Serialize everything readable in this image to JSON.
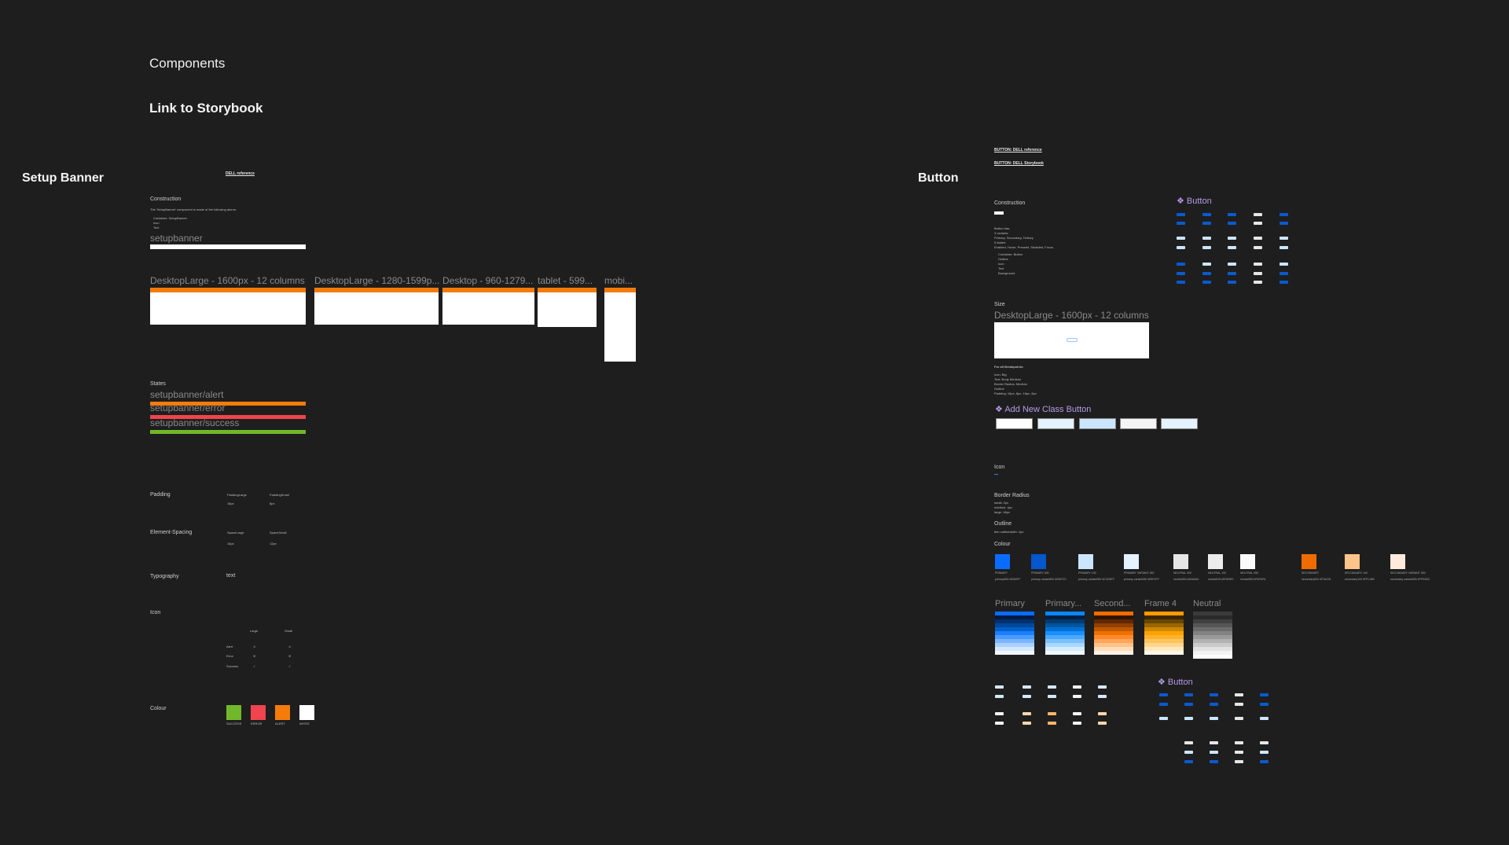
{
  "page": {
    "title": "Components",
    "storybook_link": "Link to Storybook"
  },
  "setup_banner": {
    "title": "Setup Banner",
    "reference": "DELL reference",
    "construction": "Construction",
    "construction_text": "The 'SetupBanner' component is made of the following atoms:",
    "atoms": [
      "Container: SetupBanner",
      "Icon",
      "Text"
    ],
    "instance_label": "setupbanner",
    "breakpoints": [
      "DesktopLarge - 1600px - 12 columns",
      "DesktopLarge - 1280-1599p...",
      "Desktop - 960-1279...",
      "tablet - 599...",
      "mobi..."
    ],
    "states_label": "States",
    "states": [
      {
        "name": "setupbanner/alert",
        "color": "#f57c0a"
      },
      {
        "name": "setupbanner/error",
        "color": "#f0444e"
      },
      {
        "name": "setupbanner/success",
        "color": "#72b72a"
      }
    ],
    "padding": {
      "label": "Padding",
      "items": [
        {
          "name": "PaddingLarge",
          "value": "16px"
        },
        {
          "name": "PaddingSmall",
          "value": "8px"
        }
      ]
    },
    "spacing": {
      "label": "Element-Spacing",
      "items": [
        {
          "name": "SpaceLarge",
          "value": "16px"
        },
        {
          "name": "SpaceSmall",
          "value": "12px"
        }
      ]
    },
    "typography": {
      "label": "Typography",
      "sample": "text"
    },
    "icon": {
      "label": "Icon",
      "columns": [
        "Large",
        "Small"
      ],
      "rows": [
        "Alert",
        "Error",
        "Success"
      ]
    },
    "colour": {
      "label": "Colour",
      "swatches": [
        {
          "name": "SUCCESS",
          "color": "#72b72a"
        },
        {
          "name": "ERROR",
          "color": "#f0444e"
        },
        {
          "name": "ALERT",
          "color": "#f57c0a"
        },
        {
          "name": "WHITE",
          "color": "#ffffff"
        }
      ]
    }
  },
  "button": {
    "title": "Button",
    "reference": "BUTTON: DELL reference",
    "storybook": "BUTTON: DELL Storybook",
    "construction": "Construction",
    "construction_lines": [
      "Button has:",
      "3 variants:",
      "Primary, Secondary, Tertiary",
      "5 states:",
      "Enabled, Hover, Pressed, Disabled, Focus"
    ],
    "atoms": [
      "Container: Button",
      "Outline",
      "Icon",
      "Text",
      "Background"
    ],
    "component_title": "Button",
    "size": {
      "label": "Size",
      "frame": "DesktopLarge - 1600px - 12 columns",
      "heading": "For all Breakpoints:",
      "lines": [
        "Icon: Big",
        "Text: Body Medium",
        "Border Radius: Medium",
        "Outline",
        "Padding: 16px, 8px, 16px, 8px"
      ]
    },
    "add_class": {
      "title": "Add New Class Button",
      "box_colors": [
        "#ffffff",
        "#e5f2ff",
        "#cce5ff",
        "#f5f5f5",
        "#e5f2ff"
      ]
    },
    "icon_label": "Icon",
    "border_radius": {
      "label": "Border Radius",
      "lines": [
        "small: 2px",
        "medium: 4px",
        "large: 16px"
      ]
    },
    "outline": {
      "label": "Outline",
      "lines": [
        "thin outlinewidth: 1px"
      ]
    },
    "colour": {
      "label": "Colour",
      "swatches": [
        {
          "name": "PRIMARY",
          "token": "primary500 #0062FF",
          "color": "#0a6cff"
        },
        {
          "name": "PRIMARY 600",
          "token": "primary-variant600 #0057CC",
          "color": "#0457cc"
        },
        {
          "name": "PRIMARY 100",
          "token": "primary-variant050 #CCE5FF",
          "color": "#cce5ff"
        },
        {
          "name": "PRIMARY VARIANT 050",
          "token": "primary-variant050 #E5F2FF",
          "color": "#e5f2ff"
        },
        {
          "name": "NEUTRAL 300",
          "token": "neutral300 #A0A0A0",
          "color": "#e6e6e6"
        },
        {
          "name": "NEUTRAL 100",
          "token": "neutral100 #E0E0E0",
          "color": "#ececec"
        },
        {
          "name": "NEUTRAL 050",
          "token": "neutral050 #FAFAFA",
          "color": "#fafafa"
        },
        {
          "name": "SECONDARY",
          "token": "secondary500 #F16C00",
          "color": "#f16c00"
        },
        {
          "name": "SECONDARY 100",
          "token": "secondary100 #FFC489",
          "color": "#ffc489"
        },
        {
          "name": "SECONDARY VARIANT 050",
          "token": "secondary-variant050 #FFEADC",
          "color": "#ffeadc"
        }
      ]
    },
    "palettes": [
      {
        "name": "Primary",
        "colors": [
          "#0a6cff",
          "#001a40",
          "#00306e",
          "#00489c",
          "#0060c8",
          "#1a7fff",
          "#4a9bff",
          "#7ab6ff",
          "#a9d0ff",
          "#d4e8ff",
          "#f0f7ff"
        ]
      },
      {
        "name": "Primary...",
        "colors": [
          "#0a86ff",
          "#002040",
          "#003a70",
          "#0055a0",
          "#0070d0",
          "#1a8fff",
          "#4aa8ff",
          "#7ac0ff",
          "#a9d7ff",
          "#d4ecff",
          "#f0f8ff"
        ]
      },
      {
        "name": "Second...",
        "colors": [
          "#f16c00",
          "#301400",
          "#602800",
          "#904000",
          "#c05800",
          "#f07000",
          "#ff8a2a",
          "#ffa65a",
          "#ffc28a",
          "#ffdcb8",
          "#fff2e6"
        ]
      },
      {
        "name": "Frame 4",
        "colors": [
          "#ff9a00",
          "#3a2600",
          "#6a4600",
          "#9a6600",
          "#cc8800",
          "#ffa200",
          "#ffb22e",
          "#ffc45e",
          "#ffd68e",
          "#ffe8be",
          "#fff7ea"
        ]
      },
      {
        "name": "Neutral",
        "colors": [
          "#3a3a3a",
          "#2a2a2a",
          "#404040",
          "#565656",
          "#6c6c6c",
          "#828282",
          "#9a9a9a",
          "#b2b2b2",
          "#cacaca",
          "#e2e2e2",
          "#f4f4f4",
          "#ffffff"
        ]
      }
    ],
    "bottom_component_title": "Button"
  }
}
